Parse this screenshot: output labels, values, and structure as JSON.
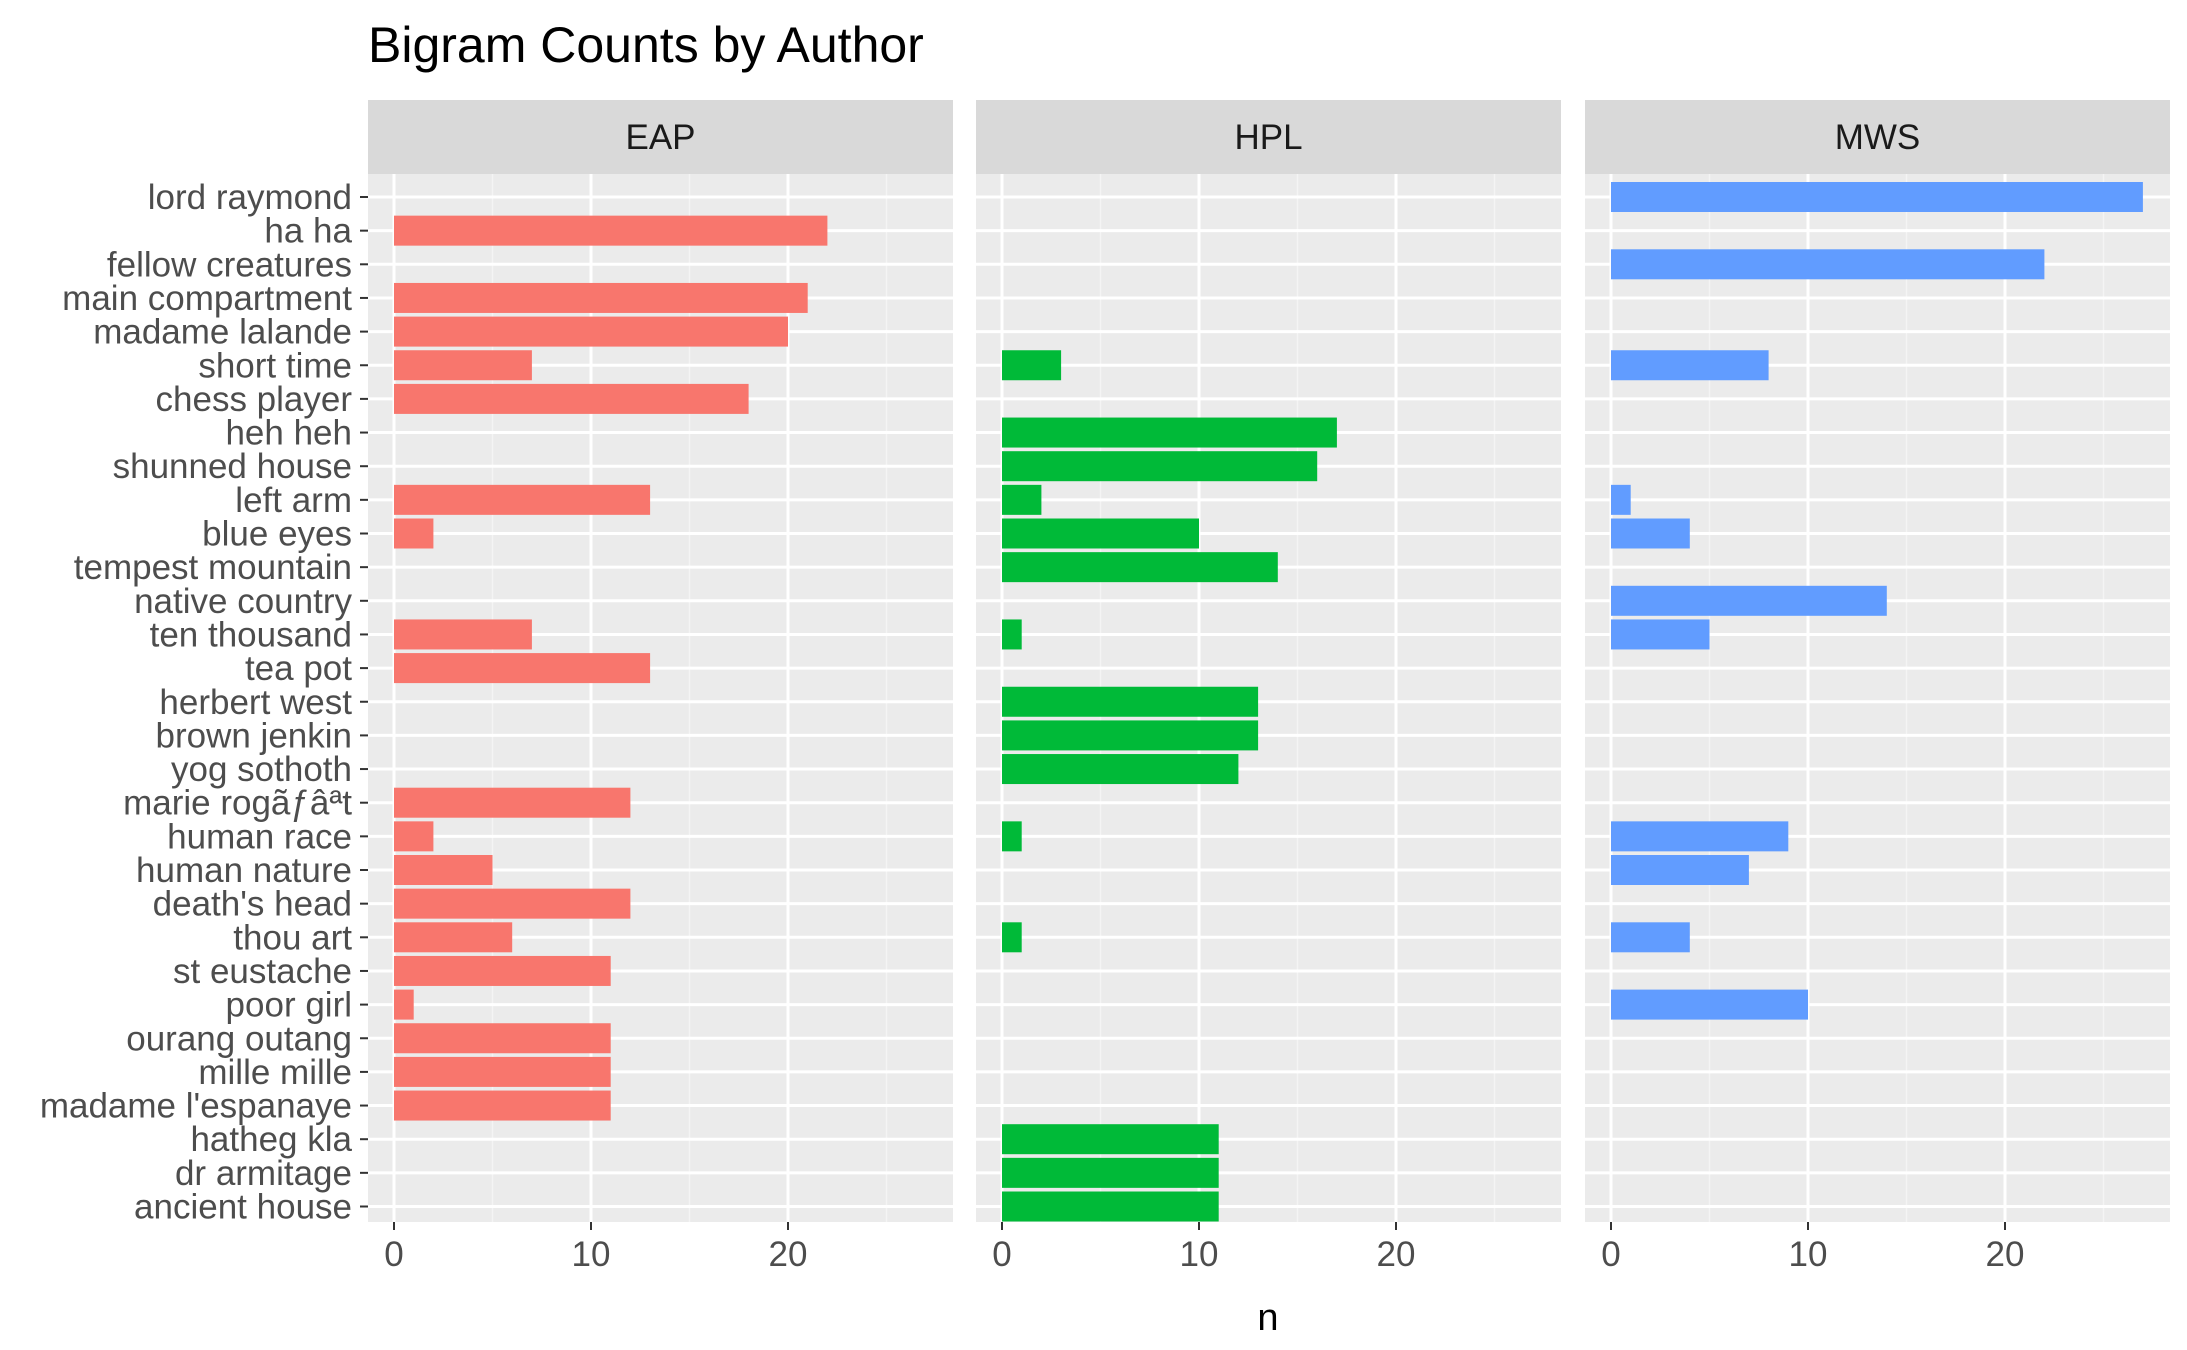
{
  "chart_data": {
    "type": "bar",
    "orientation": "horizontal",
    "title": "Bigram Counts by Author",
    "xlabel": "n",
    "ylabel": "",
    "xlim": [
      0,
      28
    ],
    "xticks": [
      0,
      10,
      20
    ],
    "grid": true,
    "legend": "none",
    "categories": [
      "lord raymond",
      "ha ha",
      "fellow creatures",
      "main compartment",
      "madame lalande",
      "short time",
      "chess player",
      "heh heh",
      "shunned house",
      "left arm",
      "blue eyes",
      "tempest mountain",
      "native country",
      "ten thousand",
      "tea pot",
      "herbert west",
      "brown jenkin",
      "yog sothoth",
      "marie rogãƒâªt",
      "human race",
      "human nature",
      "death's head",
      "thou art",
      "st eustache",
      "poor girl",
      "ourang outang",
      "mille mille",
      "madame l'espanaye",
      "hatheg kla",
      "dr armitage",
      "ancient house"
    ],
    "facets": [
      {
        "name": "EAP",
        "color": "#F8766D",
        "values": [
          null,
          22,
          null,
          21,
          20,
          7,
          18,
          null,
          null,
          13,
          2,
          null,
          null,
          7,
          13,
          null,
          null,
          null,
          12,
          2,
          5,
          12,
          6,
          11,
          1,
          11,
          11,
          11,
          null,
          null,
          null
        ]
      },
      {
        "name": "HPL",
        "color": "#00BA38",
        "values": [
          null,
          null,
          null,
          null,
          null,
          3,
          null,
          17,
          16,
          2,
          10,
          14,
          null,
          1,
          null,
          13,
          13,
          12,
          null,
          1,
          null,
          null,
          1,
          null,
          null,
          null,
          null,
          null,
          11,
          11,
          11
        ]
      },
      {
        "name": "MWS",
        "color": "#619CFF",
        "values": [
          27,
          null,
          22,
          null,
          null,
          8,
          null,
          null,
          null,
          1,
          4,
          null,
          14,
          5,
          null,
          null,
          null,
          null,
          null,
          9,
          7,
          null,
          4,
          null,
          10,
          null,
          null,
          null,
          null,
          null,
          null
        ]
      }
    ]
  }
}
